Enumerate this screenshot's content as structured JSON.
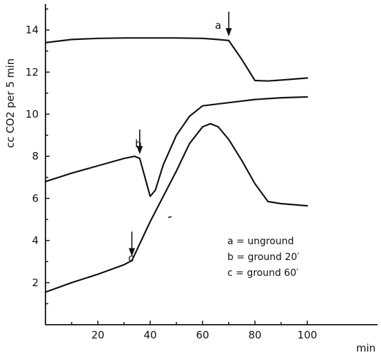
{
  "chart_data": {
    "type": "line",
    "xlabel": "min",
    "ylabel": "cc CO2 per 5 min",
    "xlim": [
      0,
      100
    ],
    "ylim": [
      0,
      15
    ],
    "xticks": [
      20,
      40,
      60,
      80,
      100
    ],
    "yticks": [
      2,
      4,
      6,
      8,
      10,
      12,
      14
    ],
    "series": [
      {
        "name": "a",
        "x": [
          0,
          10,
          20,
          30,
          40,
          50,
          60,
          65,
          70,
          75,
          80,
          85,
          90,
          100
        ],
        "y": [
          13.4,
          13.55,
          13.6,
          13.62,
          13.62,
          13.62,
          13.6,
          13.56,
          13.5,
          12.6,
          11.6,
          11.58,
          11.62,
          11.72
        ],
        "arrow_x": 70
      },
      {
        "name": "b",
        "x": [
          0,
          10,
          20,
          30,
          34,
          36,
          38,
          40,
          42,
          45,
          50,
          55,
          60,
          70,
          80,
          90,
          100
        ],
        "y": [
          6.8,
          7.2,
          7.55,
          7.9,
          8.0,
          7.9,
          7.0,
          6.1,
          6.4,
          7.6,
          9.0,
          9.9,
          10.4,
          10.55,
          10.7,
          10.78,
          10.82
        ],
        "arrow_x": 36
      },
      {
        "name": "c",
        "x": [
          0,
          10,
          20,
          30,
          33,
          40,
          50,
          55,
          60,
          63,
          66,
          70,
          75,
          80,
          85,
          90,
          100
        ],
        "y": [
          1.55,
          2.0,
          2.4,
          2.85,
          3.05,
          4.9,
          7.3,
          8.6,
          9.4,
          9.55,
          9.4,
          8.8,
          7.8,
          6.7,
          5.85,
          5.75,
          5.65
        ],
        "arrow_x": 33
      }
    ],
    "legend": {
      "placement": "lower-right",
      "entries": [
        "a = unground",
        "b = ground 20′",
        "c = ground 60′"
      ]
    }
  }
}
